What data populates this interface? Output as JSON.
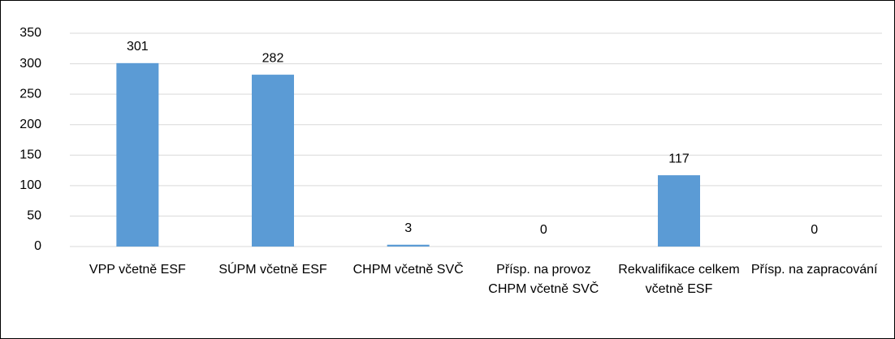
{
  "chart_data": {
    "type": "bar",
    "categories": [
      "VPP včetně ESF",
      "SÚPM včetně ESF",
      "CHPM včetně SVČ",
      "Přísp. na provoz CHPM včetně SVČ",
      "Rekvalifikace celkem včetně ESF",
      "Přísp. na zapracování"
    ],
    "values": [
      301,
      282,
      3,
      0,
      117,
      0
    ],
    "color": "#5b9bd5",
    "ylim": [
      0,
      350
    ],
    "yticks": [
      0,
      50,
      100,
      150,
      200,
      250,
      300,
      350
    ],
    "grid": true
  }
}
